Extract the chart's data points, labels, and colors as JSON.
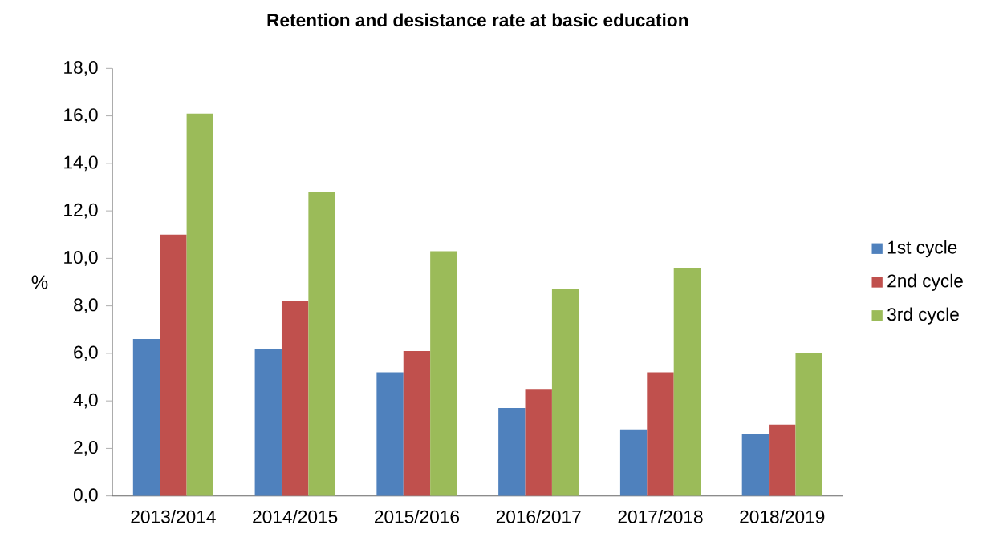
{
  "chart_data": {
    "type": "bar",
    "title": "Retention and desistance rate at basic education",
    "ylabel": "%",
    "categories": [
      "2013/2014",
      "2014/2015",
      "2015/2016",
      "2016/2017",
      "2017/2018",
      "2018/2019"
    ],
    "series": [
      {
        "name": "1st cycle",
        "color": "#4f81bd",
        "values": [
          6.6,
          6.2,
          5.2,
          3.7,
          2.8,
          2.6
        ]
      },
      {
        "name": "2nd cycle",
        "color": "#c0504d",
        "values": [
          11.0,
          8.2,
          6.1,
          4.5,
          5.2,
          3.0
        ]
      },
      {
        "name": "3rd cycle",
        "color": "#9bbb59",
        "values": [
          16.1,
          12.8,
          10.3,
          8.7,
          9.6,
          6.0
        ]
      }
    ],
    "ylim": [
      0,
      18
    ],
    "yticks": [
      {
        "value": 0,
        "label": "0,0"
      },
      {
        "value": 2,
        "label": "2,0"
      },
      {
        "value": 4,
        "label": "4,0"
      },
      {
        "value": 6,
        "label": "6,0"
      },
      {
        "value": 8,
        "label": "8,0"
      },
      {
        "value": 10,
        "label": "10,0"
      },
      {
        "value": 12,
        "label": "12,0"
      },
      {
        "value": 14,
        "label": "14,0"
      },
      {
        "value": 16,
        "label": "16,0"
      },
      {
        "value": 18,
        "label": "18,0"
      }
    ],
    "grid": false,
    "legend": "right"
  }
}
